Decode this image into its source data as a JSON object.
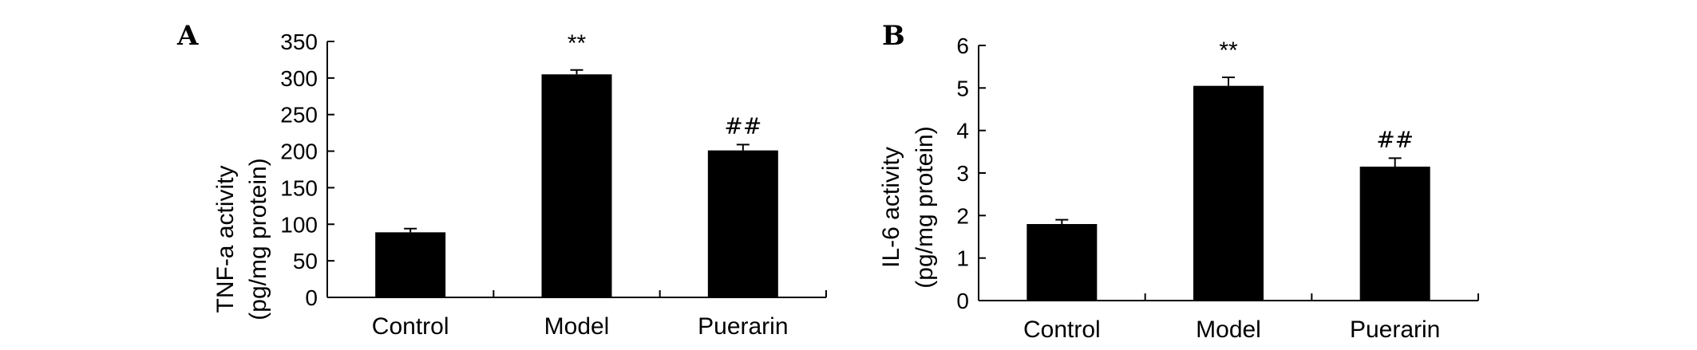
{
  "chart_data": [
    {
      "type": "bar",
      "panel_label": "A",
      "categories": [
        "Control",
        "Model",
        "Puerarin"
      ],
      "values": [
        89,
        305,
        201
      ],
      "errors": [
        5,
        6,
        8
      ],
      "annotations": [
        "",
        "**",
        "##"
      ],
      "ylabel_line1": "TNF-a activity",
      "ylabel_line2": "(pg/mg protein)",
      "ylim": [
        0,
        350
      ],
      "yticks": [
        0,
        50,
        100,
        150,
        200,
        250,
        300,
        350
      ],
      "bar_color": "#000000",
      "grid": false
    },
    {
      "type": "bar",
      "panel_label": "B",
      "categories": [
        "Control",
        "Model",
        "Puerarin"
      ],
      "values": [
        1.8,
        5.05,
        3.15
      ],
      "errors": [
        0.1,
        0.2,
        0.2
      ],
      "annotations": [
        "",
        "**",
        "##"
      ],
      "ylabel_line1": "IL-6 activity",
      "ylabel_line2": "(pg/mg protein)",
      "ylim": [
        0,
        6
      ],
      "yticks": [
        0,
        1,
        2,
        3,
        4,
        5,
        6
      ],
      "bar_color": "#000000",
      "grid": false
    }
  ]
}
